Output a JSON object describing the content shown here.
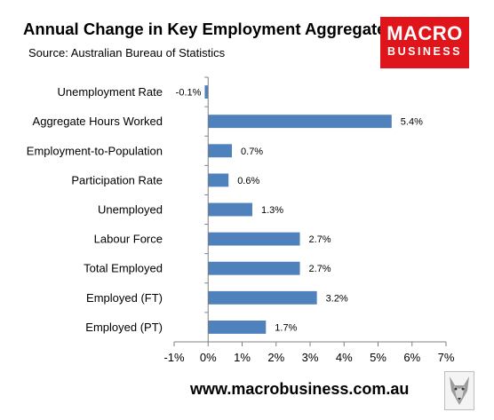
{
  "header": {
    "title": "Annual Change in Key Employment Aggregates",
    "subtitle": "Source: Australian Bureau of Statistics"
  },
  "logo": {
    "line1": "MACRO",
    "line2": "BUSINESS",
    "color": "#e0151b"
  },
  "footer": {
    "url": "www.macrobusiness.com.au"
  },
  "chart_data": {
    "type": "bar",
    "orientation": "horizontal",
    "title": "Annual Change in Key Employment Aggregates",
    "subtitle": "Source: Australian Bureau of Statistics",
    "categories": [
      "Unemployment Rate",
      "Aggregate Hours Worked",
      "Employment-to-Population",
      "Participation Rate",
      "Unemployed",
      "Labour Force",
      "Total Employed",
      "Employed (FT)",
      "Employed (PT)"
    ],
    "values": [
      -0.1,
      5.4,
      0.7,
      0.6,
      1.3,
      2.7,
      2.7,
      3.2,
      1.7
    ],
    "data_labels": [
      "-0.1%",
      "5.4%",
      "0.7%",
      "0.6%",
      "1.3%",
      "2.7%",
      "2.7%",
      "3.2%",
      "1.7%"
    ],
    "xlim": [
      -1,
      7
    ],
    "xticks": [
      -1,
      0,
      1,
      2,
      3,
      4,
      5,
      6,
      7
    ],
    "xtick_labels": [
      "-1%",
      "0%",
      "1%",
      "2%",
      "3%",
      "4%",
      "5%",
      "6%",
      "7%"
    ],
    "bar_color": "#4f81bd",
    "grid": false,
    "legend": "none"
  }
}
